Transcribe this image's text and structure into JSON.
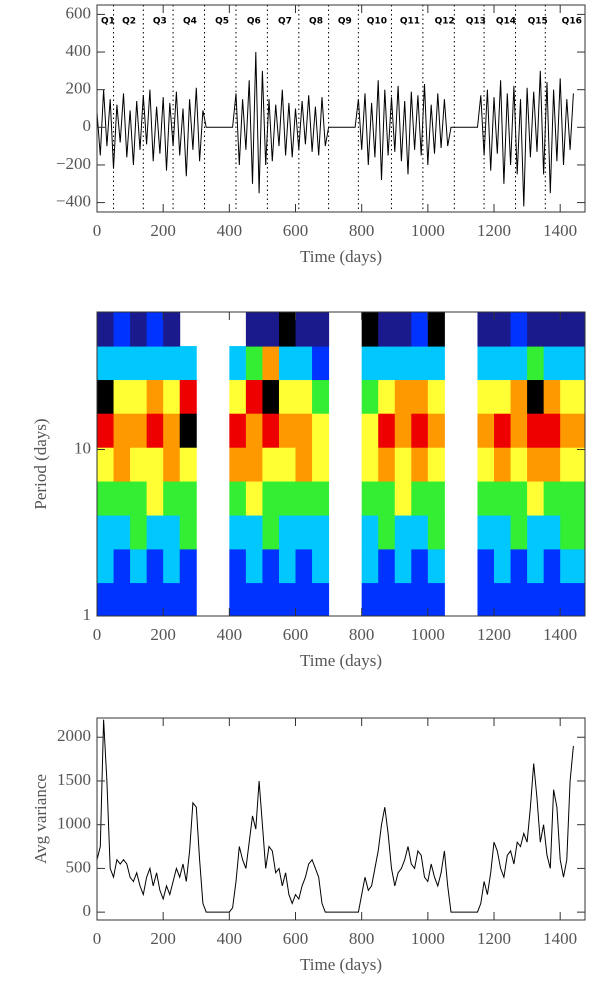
{
  "chart_data": [
    {
      "type": "line",
      "xlim": [
        0,
        1475
      ],
      "xticks": [
        0,
        200,
        400,
        600,
        800,
        1000,
        1200,
        1400
      ],
      "ylim": [
        -450,
        650
      ],
      "yticks": [
        {
          "value": -400,
          "label": "−400"
        },
        {
          "value": -200,
          "label": "−200"
        },
        0,
        200,
        400,
        600
      ],
      "xlabel": "Time (days)",
      "color": "#000000",
      "quarters": [
        {
          "label": "Q1",
          "x": 33
        },
        {
          "label": "Q2",
          "x": 97
        },
        {
          "label": "Q3",
          "x": 190
        },
        {
          "label": "Q4",
          "x": 281
        },
        {
          "label": "Q5",
          "x": 378
        },
        {
          "label": "Q6",
          "x": 474
        },
        {
          "label": "Q7",
          "x": 568
        },
        {
          "label": "Q8",
          "x": 662
        },
        {
          "label": "Q9",
          "x": 749
        },
        {
          "label": "Q10",
          "x": 846
        },
        {
          "label": "Q11",
          "x": 946
        },
        {
          "label": "Q12",
          "x": 1051
        },
        {
          "label": "Q13",
          "x": 1145
        },
        {
          "label": "Q14",
          "x": 1236
        },
        {
          "label": "Q15",
          "x": 1332
        },
        {
          "label": "Q16",
          "x": 1435
        }
      ],
      "boundaries": [
        50,
        140,
        230,
        325,
        420,
        515,
        610,
        700,
        790,
        890,
        985,
        1080,
        1170,
        1265,
        1355
      ],
      "x": [
        0,
        10,
        20,
        30,
        40,
        50,
        60,
        70,
        80,
        90,
        100,
        110,
        120,
        130,
        140,
        150,
        160,
        170,
        180,
        190,
        200,
        210,
        220,
        230,
        240,
        250,
        260,
        270,
        280,
        290,
        300,
        310,
        320,
        330,
        340,
        350,
        360,
        370,
        380,
        390,
        400,
        410,
        420,
        430,
        440,
        450,
        460,
        470,
        480,
        490,
        500,
        510,
        520,
        530,
        540,
        550,
        560,
        570,
        580,
        590,
        600,
        610,
        620,
        630,
        640,
        650,
        660,
        670,
        680,
        690,
        700,
        710,
        720,
        730,
        740,
        750,
        760,
        770,
        780,
        790,
        800,
        810,
        820,
        830,
        840,
        850,
        860,
        870,
        880,
        890,
        900,
        910,
        920,
        930,
        940,
        950,
        960,
        970,
        980,
        990,
        1000,
        1010,
        1020,
        1030,
        1040,
        1050,
        1060,
        1070,
        1080,
        1090,
        1100,
        1110,
        1120,
        1130,
        1140,
        1150,
        1160,
        1170,
        1180,
        1190,
        1200,
        1210,
        1220,
        1230,
        1240,
        1250,
        1260,
        1270,
        1280,
        1290,
        1300,
        1310,
        1320,
        1330,
        1340,
        1350,
        1360,
        1370,
        1380,
        1390,
        1400,
        1410,
        1420,
        1430,
        1440
      ],
      "values": [
        80,
        -150,
        200,
        -100,
        150,
        -220,
        120,
        -80,
        180,
        -160,
        90,
        -200,
        140,
        -120,
        170,
        -90,
        200,
        -180,
        110,
        -140,
        160,
        -230,
        130,
        -100,
        190,
        -150,
        100,
        -260,
        150,
        -120,
        210,
        -180,
        90,
        0,
        0,
        0,
        0,
        0,
        0,
        0,
        0,
        0,
        180,
        -200,
        150,
        -120,
        250,
        -300,
        400,
        -350,
        300,
        -200,
        150,
        -180,
        120,
        -100,
        200,
        -150,
        130,
        -160,
        100,
        -120,
        140,
        -90,
        170,
        -130,
        110,
        -150,
        160,
        -100,
        0,
        0,
        0,
        0,
        0,
        0,
        0,
        0,
        0,
        150,
        -120,
        180,
        -200,
        130,
        -160,
        250,
        -280,
        200,
        -150,
        160,
        -130,
        220,
        -180,
        140,
        -250,
        190,
        -120,
        170,
        -150,
        230,
        -200,
        120,
        -140,
        180,
        -110,
        150,
        -100,
        0,
        0,
        0,
        0,
        0,
        0,
        0,
        0,
        0,
        170,
        -150,
        200,
        -230,
        160,
        -140,
        250,
        -300,
        180,
        -200,
        220,
        -250,
        150,
        -420,
        210,
        -160,
        190,
        -130,
        300,
        -250,
        240,
        -350,
        200,
        -180,
        260,
        -200,
        150,
        -120,
        180
      ]
    },
    {
      "type": "heatmap",
      "xlim": [
        0,
        1475
      ],
      "xticks": [
        0,
        200,
        400,
        600,
        800,
        1000,
        1200,
        1400
      ],
      "ylim": [
        1,
        67
      ],
      "ylog": true,
      "yticks": [
        1,
        10
      ],
      "xlabel": "Time (days)",
      "ylabel": "Period (days)",
      "colorscale": [
        "#ffffff",
        "#1a1a8c",
        "#0033ff",
        "#00c8ff",
        "#33ee33",
        "#ffff33",
        "#ff9900",
        "#ee0000",
        "#000000"
      ],
      "x": [
        25,
        75,
        125,
        175,
        225,
        275,
        325,
        375,
        425,
        475,
        525,
        575,
        625,
        675,
        725,
        775,
        825,
        875,
        925,
        975,
        1025,
        1075,
        1125,
        1175,
        1225,
        1275,
        1325,
        1375,
        1425
      ],
      "y": [
        1.26,
        2,
        3.2,
        5.1,
        8.2,
        13,
        21,
        33,
        53
      ],
      "z": [
        [
          2,
          2,
          2,
          2,
          2,
          2,
          0,
          0,
          2,
          2,
          2,
          2,
          2,
          2,
          0,
          0,
          2,
          2,
          2,
          2,
          2,
          0,
          0,
          2,
          2,
          2,
          2,
          2,
          2
        ],
        [
          3,
          2,
          3,
          2,
          3,
          2,
          0,
          0,
          2,
          3,
          2,
          3,
          2,
          3,
          0,
          0,
          3,
          2,
          3,
          2,
          3,
          0,
          0,
          2,
          3,
          2,
          3,
          2,
          3
        ],
        [
          3,
          3,
          4,
          3,
          3,
          4,
          0,
          0,
          3,
          3,
          4,
          3,
          3,
          3,
          0,
          0,
          3,
          4,
          3,
          3,
          4,
          0,
          0,
          3,
          3,
          4,
          3,
          3,
          4
        ],
        [
          4,
          4,
          4,
          5,
          4,
          4,
          0,
          0,
          4,
          5,
          4,
          4,
          4,
          4,
          0,
          0,
          4,
          4,
          5,
          4,
          4,
          0,
          0,
          4,
          4,
          4,
          5,
          4,
          4
        ],
        [
          5,
          6,
          5,
          5,
          6,
          5,
          0,
          0,
          6,
          6,
          5,
          5,
          6,
          5,
          0,
          0,
          5,
          6,
          5,
          6,
          5,
          0,
          0,
          5,
          6,
          5,
          6,
          6,
          5
        ],
        [
          7,
          6,
          6,
          7,
          6,
          8,
          0,
          0,
          7,
          6,
          7,
          6,
          6,
          5,
          0,
          0,
          5,
          7,
          6,
          7,
          6,
          0,
          0,
          6,
          7,
          6,
          7,
          7,
          6
        ],
        [
          8,
          5,
          5,
          6,
          5,
          7,
          0,
          0,
          5,
          7,
          8,
          5,
          5,
          4,
          0,
          0,
          4,
          5,
          6,
          6,
          5,
          0,
          0,
          5,
          5,
          6,
          8,
          6,
          5
        ],
        [
          3,
          3,
          3,
          3,
          3,
          3,
          0,
          0,
          3,
          4,
          6,
          3,
          3,
          2,
          0,
          0,
          3,
          3,
          3,
          3,
          3,
          0,
          0,
          3,
          3,
          3,
          4,
          3,
          3
        ],
        [
          1,
          2,
          1,
          2,
          1,
          0,
          0,
          0,
          0,
          1,
          1,
          8,
          1,
          1,
          0,
          0,
          8,
          1,
          1,
          2,
          8,
          0,
          0,
          1,
          1,
          2,
          1,
          1,
          1
        ]
      ]
    },
    {
      "type": "line",
      "xlim": [
        0,
        1475
      ],
      "xticks": [
        0,
        200,
        400,
        600,
        800,
        1000,
        1200,
        1400
      ],
      "ylim": [
        -90,
        2220
      ],
      "yticks": [
        0,
        500,
        1000,
        1500,
        2000
      ],
      "xlabel": "Time (days)",
      "ylabel": "Avg variance",
      "color": "#000000",
      "x": [
        0,
        10,
        20,
        30,
        40,
        50,
        60,
        70,
        80,
        90,
        100,
        110,
        120,
        130,
        140,
        150,
        160,
        170,
        180,
        190,
        200,
        210,
        220,
        230,
        240,
        250,
        260,
        270,
        280,
        290,
        300,
        310,
        320,
        330,
        340,
        350,
        360,
        370,
        380,
        390,
        400,
        410,
        420,
        430,
        440,
        450,
        460,
        470,
        480,
        490,
        500,
        510,
        520,
        530,
        540,
        550,
        560,
        570,
        580,
        590,
        600,
        610,
        620,
        630,
        640,
        650,
        660,
        670,
        680,
        690,
        700,
        710,
        720,
        730,
        740,
        750,
        760,
        770,
        780,
        790,
        800,
        810,
        820,
        830,
        840,
        850,
        860,
        870,
        880,
        890,
        900,
        910,
        920,
        930,
        940,
        950,
        960,
        970,
        980,
        990,
        1000,
        1010,
        1020,
        1030,
        1040,
        1050,
        1060,
        1070,
        1080,
        1090,
        1100,
        1110,
        1120,
        1130,
        1140,
        1150,
        1160,
        1170,
        1180,
        1190,
        1200,
        1210,
        1220,
        1230,
        1240,
        1250,
        1260,
        1270,
        1280,
        1290,
        1300,
        1310,
        1320,
        1330,
        1340,
        1350,
        1360,
        1370,
        1380,
        1390,
        1400,
        1410,
        1420,
        1430,
        1440
      ],
      "values": [
        600,
        750,
        2200,
        1500,
        500,
        400,
        600,
        550,
        600,
        550,
        400,
        350,
        450,
        300,
        200,
        400,
        500,
        300,
        450,
        250,
        150,
        300,
        200,
        350,
        500,
        400,
        550,
        350,
        700,
        1250,
        1200,
        600,
        100,
        0,
        0,
        0,
        0,
        0,
        0,
        0,
        0,
        50,
        350,
        750,
        600,
        500,
        800,
        1100,
        950,
        1500,
        1000,
        500,
        750,
        700,
        450,
        500,
        300,
        450,
        200,
        100,
        200,
        150,
        300,
        400,
        550,
        600,
        500,
        400,
        100,
        0,
        0,
        0,
        0,
        0,
        0,
        0,
        0,
        0,
        0,
        0,
        200,
        400,
        250,
        300,
        500,
        700,
        1000,
        1200,
        900,
        500,
        300,
        450,
        500,
        600,
        750,
        550,
        500,
        700,
        650,
        400,
        350,
        550,
        400,
        300,
        450,
        700,
        300,
        0,
        0,
        0,
        0,
        0,
        0,
        0,
        0,
        0,
        100,
        350,
        200,
        450,
        800,
        700,
        500,
        400,
        650,
        700,
        550,
        800,
        750,
        900,
        800,
        1200,
        1700,
        1300,
        800,
        1000,
        650,
        500,
        1400,
        1200,
        600,
        400,
        600,
        1500,
        1900
      ]
    }
  ]
}
